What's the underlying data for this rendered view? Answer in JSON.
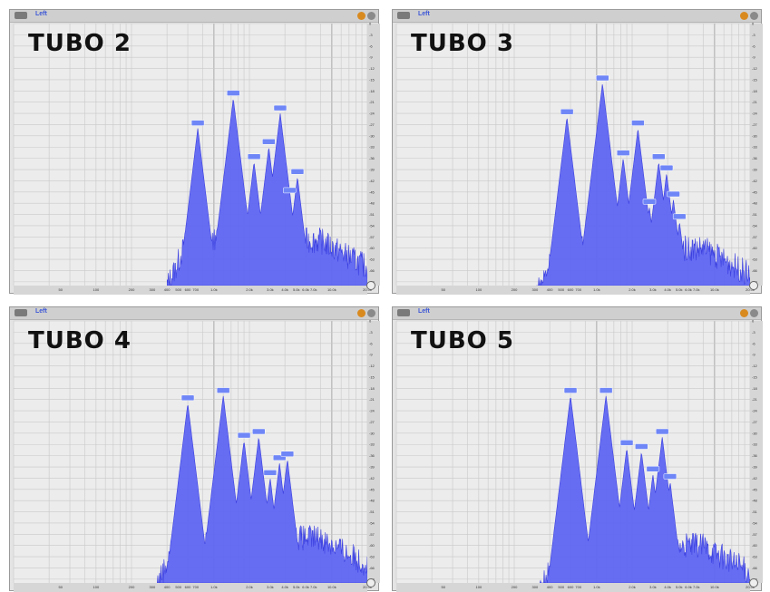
{
  "panels": [
    {
      "title": "TUBO 2",
      "channel": "Left"
    },
    {
      "title": "TUBO 3",
      "channel": "Left"
    },
    {
      "title": "TUBO 4",
      "channel": "Left"
    },
    {
      "title": "TUBO 5",
      "channel": "Left"
    }
  ],
  "colors": {
    "fill": "#5f66f2",
    "stroke": "#3b3fe0",
    "background": "#e4e4e4",
    "grid": "#c8c8c8",
    "label": "#6f86f7"
  },
  "chart_data": [
    {
      "type": "area",
      "title": "TUBO 2",
      "xscale": "log",
      "xlim": [
        20,
        20000
      ],
      "ylim": [
        -70,
        0
      ],
      "ylabels": [
        "0",
        "-3",
        "-6",
        "-9",
        "-12",
        "-15",
        "-18",
        "-21",
        "-24",
        "-27",
        "-30",
        "-33",
        "-36",
        "-39",
        "-42",
        "-45",
        "-48",
        "-51",
        "-54",
        "-57",
        "-60",
        "-63",
        "-66",
        "-69"
      ],
      "xticks": [
        "50",
        "100",
        "200",
        "300",
        "400",
        "500",
        "600",
        "700",
        "1.0k",
        "2.0k",
        "3.0k",
        "4.0k",
        "5.0k",
        "6.0k",
        "7.0k",
        "10.0k",
        "20.0k"
      ],
      "base_level": -58,
      "peaks": [
        {
          "freq": 730,
          "db": -28
        },
        {
          "freq": 1460,
          "db": -20
        },
        {
          "freq": 2190,
          "db": -37
        },
        {
          "freq": 2920,
          "db": -33
        },
        {
          "freq": 3650,
          "db": -24
        },
        {
          "freq": 4380,
          "db": -46
        },
        {
          "freq": 5110,
          "db": -41
        }
      ]
    },
    {
      "type": "area",
      "title": "TUBO 3",
      "xscale": "log",
      "xlim": [
        20,
        20000
      ],
      "ylim": [
        -70,
        0
      ],
      "base_level": -60,
      "peaks": [
        {
          "freq": 560,
          "db": -25
        },
        {
          "freq": 1120,
          "db": -16
        },
        {
          "freq": 1680,
          "db": -36
        },
        {
          "freq": 2240,
          "db": -28
        },
        {
          "freq": 2800,
          "db": -49
        },
        {
          "freq": 3360,
          "db": -37
        },
        {
          "freq": 3920,
          "db": -40
        },
        {
          "freq": 4480,
          "db": -47
        },
        {
          "freq": 5040,
          "db": -53
        }
      ]
    },
    {
      "type": "area",
      "title": "TUBO 4",
      "xscale": "log",
      "xlim": [
        20,
        20000
      ],
      "ylim": [
        -70,
        0
      ],
      "base_level": -58,
      "peaks": [
        {
          "freq": 600,
          "db": -22
        },
        {
          "freq": 1200,
          "db": -20
        },
        {
          "freq": 1800,
          "db": -32
        },
        {
          "freq": 2400,
          "db": -31
        },
        {
          "freq": 3000,
          "db": -42
        },
        {
          "freq": 3600,
          "db": -38
        },
        {
          "freq": 4200,
          "db": -37
        }
      ]
    },
    {
      "type": "area",
      "title": "TUBO 5",
      "xscale": "log",
      "xlim": [
        20,
        20000
      ],
      "ylim": [
        -70,
        0
      ],
      "base_level": -60,
      "peaks": [
        {
          "freq": 600,
          "db": -20
        },
        {
          "freq": 1200,
          "db": -20
        },
        {
          "freq": 1800,
          "db": -34
        },
        {
          "freq": 2400,
          "db": -35
        },
        {
          "freq": 3000,
          "db": -41
        },
        {
          "freq": 3600,
          "db": -31
        },
        {
          "freq": 4200,
          "db": -43
        }
      ]
    }
  ]
}
